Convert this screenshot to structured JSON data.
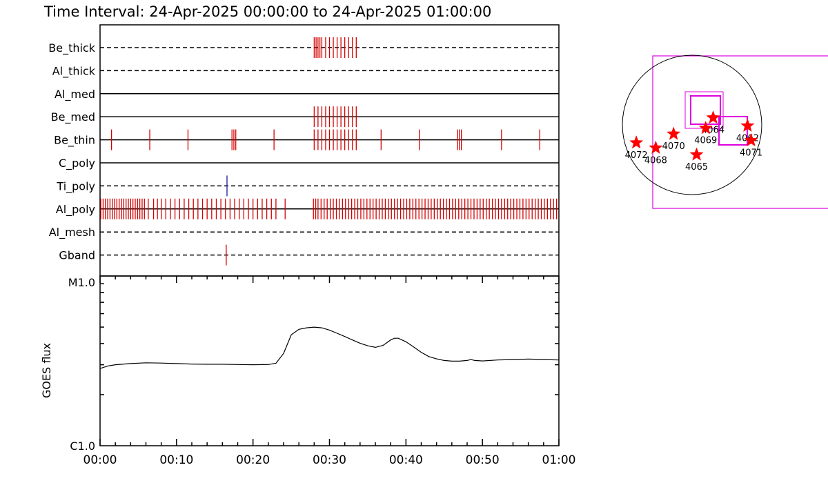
{
  "title": "Time Interval: 24-Apr-2025 00:00:00 to 24-Apr-2025 01:00:00",
  "colors": {
    "frame": "#000000",
    "event": "#d40000",
    "ti_event": "#1a1aa0",
    "fov": "#dd00dd",
    "star": "#ff0000"
  },
  "chart_data": [
    {
      "type": "event-timeline",
      "x_unit": "minutes after 00:00",
      "xlim": [
        0,
        60
      ],
      "channels": [
        {
          "name": "Be_thick",
          "line": "dashed",
          "events": [
            28,
            28.25,
            28.5,
            28.75,
            29,
            29.5,
            30,
            30.5,
            31,
            31.5,
            32,
            32.5,
            33,
            33.5
          ]
        },
        {
          "name": "Al_thick",
          "line": "dashed",
          "events": []
        },
        {
          "name": "Al_med",
          "line": "solid",
          "events": []
        },
        {
          "name": "Be_med",
          "line": "solid",
          "events": [
            28,
            28.5,
            29,
            29.5,
            30,
            30.5,
            31,
            31.5,
            32,
            32.5,
            33,
            33.5
          ]
        },
        {
          "name": "Be_thin",
          "line": "solid",
          "events": [
            1.5,
            6.5,
            11.5,
            17.25,
            17.5,
            17.75,
            22.75,
            28,
            28.5,
            29,
            29.5,
            30,
            30.5,
            31,
            31.5,
            32,
            32.5,
            33,
            33.5,
            36.75,
            41.75,
            46.75,
            47,
            47.25,
            52.5,
            57.5
          ]
        },
        {
          "name": "C_poly",
          "line": "solid",
          "events": []
        },
        {
          "name": "Ti_poly",
          "line": "dashed",
          "events": [
            16.6
          ],
          "color": "ti_event"
        },
        {
          "name": "Al_poly",
          "line": "solid",
          "events": [
            0.1,
            0.4,
            0.7,
            1.0,
            1.3,
            1.6,
            1.9,
            2.2,
            2.5,
            2.8,
            3.1,
            3.4,
            3.7,
            4.0,
            4.3,
            4.6,
            4.9,
            5.2,
            5.5,
            5.8,
            6.3,
            7.0,
            7.5,
            8.0,
            8.6,
            9.2,
            9.8,
            10.4,
            11.0,
            11.6,
            12.2,
            12.8,
            13.4,
            14.0,
            14.6,
            15.2,
            15.8,
            16.4,
            17.0,
            17.6,
            18.2,
            18.8,
            19.4,
            20.0,
            20.6,
            21.2,
            21.8,
            22.4,
            23.0,
            24.2,
            27.9,
            28.2,
            28.5,
            28.9,
            29.3,
            29.7,
            30.1,
            30.5,
            30.9,
            31.3,
            31.7,
            32.1,
            32.5,
            32.9,
            33.3,
            33.7,
            34.1,
            34.5,
            34.9,
            35.3,
            35.7,
            36.1,
            36.5,
            36.9,
            37.3,
            37.7,
            38.1,
            38.5,
            38.9,
            39.3,
            39.7,
            40.1,
            40.5,
            40.9,
            41.3,
            41.7,
            42.1,
            42.5,
            42.9,
            43.3,
            43.7,
            44.1,
            44.5,
            44.9,
            45.3,
            45.7,
            46.1,
            46.5,
            46.9,
            47.3,
            47.7,
            48.1,
            48.5,
            48.9,
            49.3,
            49.7,
            50.1,
            50.5,
            50.9,
            51.3,
            51.7,
            52.1,
            52.5,
            52.9,
            53.3,
            53.7,
            54.1,
            54.5,
            54.9,
            55.3,
            55.7,
            56.1,
            56.5,
            56.9,
            57.3,
            57.7,
            58.1,
            58.5,
            58.9,
            59.3,
            59.7
          ]
        },
        {
          "name": "Al_mesh",
          "line": "dashed",
          "events": []
        },
        {
          "name": "Gband",
          "line": "dashed",
          "events": [
            16.5
          ]
        }
      ]
    },
    {
      "type": "line",
      "ylabel": "GOES flux",
      "y_scale": "log",
      "y_tick_labels": [
        "M1.0",
        "C1.0"
      ],
      "ylim_flux": [
        1e-06,
        1e-05
      ],
      "x_tick_labels": [
        "00:00",
        "00:10",
        "00:20",
        "00:30",
        "00:40",
        "00:50",
        "01:00"
      ],
      "x_ticks_min": [
        0,
        10,
        20,
        30,
        40,
        50,
        60
      ],
      "x_unit": "minutes after 00:00",
      "x": [
        0,
        1,
        2,
        4,
        6,
        8,
        10,
        12,
        14,
        16,
        18,
        20,
        22,
        23,
        24,
        25,
        26,
        27,
        28,
        29,
        30,
        31,
        32,
        33,
        34,
        35,
        36,
        37,
        38,
        38.5,
        39,
        40,
        41,
        42,
        43,
        44,
        45,
        46,
        47,
        48,
        48.5,
        49,
        50,
        52,
        54,
        56,
        58,
        60
      ],
      "flux": [
        2.85e-06,
        2.95e-06,
        3e-06,
        3.05e-06,
        3.08e-06,
        3.07e-06,
        3.05e-06,
        3.03e-06,
        3.02e-06,
        3.02e-06,
        3.01e-06,
        3e-06,
        3.01e-06,
        3.06e-06,
        3.5e-06,
        4.5e-06,
        4.85e-06,
        4.95e-06,
        5e-06,
        4.95e-06,
        4.8e-06,
        4.6e-06,
        4.4e-06,
        4.2e-06,
        4.02e-06,
        3.88e-06,
        3.8e-06,
        3.9e-06,
        4.2e-06,
        4.3e-06,
        4.3e-06,
        4.1e-06,
        3.82e-06,
        3.55e-06,
        3.35e-06,
        3.25e-06,
        3.18e-06,
        3.15e-06,
        3.15e-06,
        3.18e-06,
        3.22e-06,
        3.18e-06,
        3.16e-06,
        3.2e-06,
        3.22e-06,
        3.24e-06,
        3.22e-06,
        3.2e-06
      ]
    },
    {
      "type": "scatter",
      "description": "solar disk active-region map",
      "regions": [
        {
          "label": "4064",
          "x": 0.65,
          "y": -0.22
        },
        {
          "label": "4062",
          "x": 1.71,
          "y": 0.03
        },
        {
          "label": "4069",
          "x": 0.42,
          "y": 0.1
        },
        {
          "label": "4070",
          "x": -0.57,
          "y": 0.28
        },
        {
          "label": "4072",
          "x": -1.72,
          "y": 0.55
        },
        {
          "label": "4068",
          "x": -1.12,
          "y": 0.71
        },
        {
          "label": "4065",
          "x": 0.14,
          "y": 0.92
        },
        {
          "label": "4071",
          "x": 1.82,
          "y": 0.48
        }
      ]
    }
  ]
}
